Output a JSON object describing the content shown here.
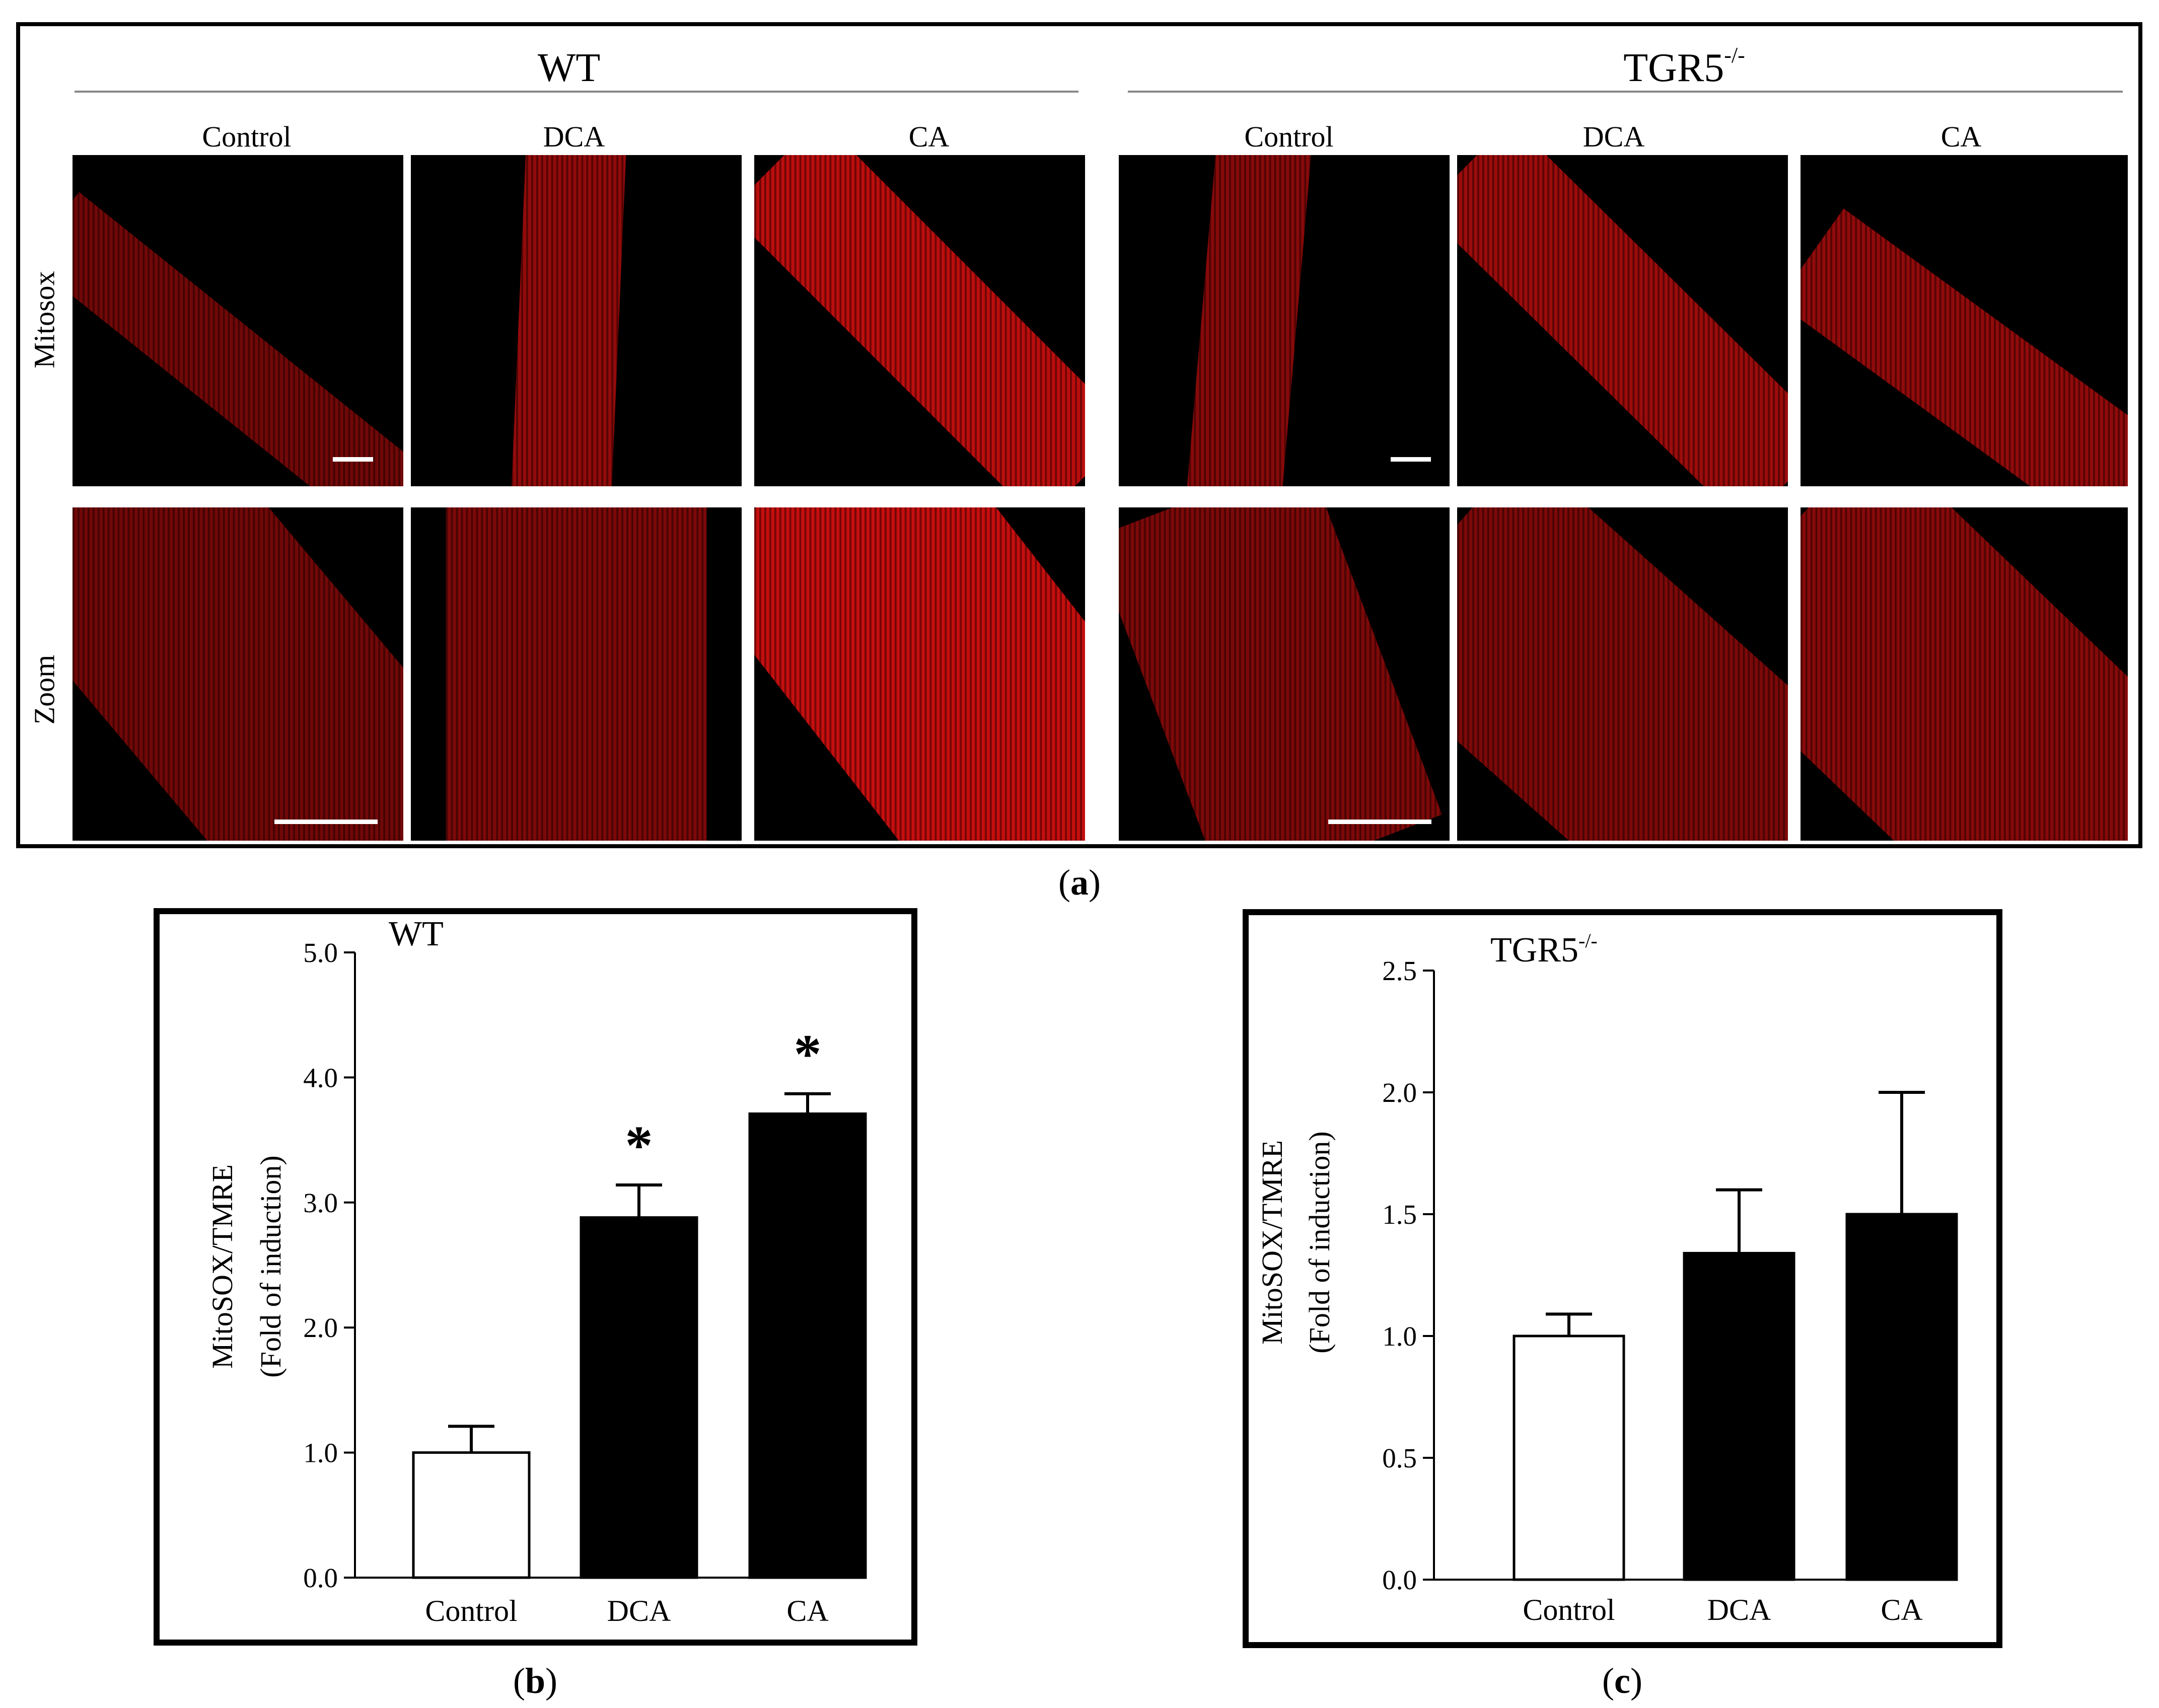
{
  "figure": {
    "panel_a": {
      "caption_letter": "a",
      "groups": [
        {
          "title": "WT",
          "superscript": ""
        },
        {
          "title": "TGR5",
          "superscript": "-/-"
        }
      ],
      "columns": [
        "Control",
        "DCA",
        "CA",
        "Control",
        "DCA",
        "CA"
      ],
      "rows": [
        "Mitosox",
        "Zoom"
      ],
      "fluorescence_color": "#d01010"
    },
    "panel_b": {
      "caption_letter": "b"
    },
    "panel_c": {
      "caption_letter": "c"
    }
  },
  "chart_data": [
    {
      "type": "bar",
      "title": "WT",
      "title_superscript": "",
      "categories": [
        "Control",
        "DCA",
        "CA"
      ],
      "values": [
        1.0,
        2.88,
        3.71
      ],
      "error_upper": [
        1.21,
        3.14,
        3.87
      ],
      "significance": [
        "",
        "*",
        "*"
      ],
      "bar_colors": [
        "#ffffff",
        "#000000",
        "#000000"
      ],
      "ylabel_line1": "MitoSOX/TMRE",
      "ylabel_line2": "(Fold of induction)",
      "ylim": [
        0,
        5
      ],
      "yticks": [
        "0.0",
        "1.0",
        "2.0",
        "3.0",
        "4.0",
        "5.0"
      ],
      "ytick_values": [
        0,
        1,
        2,
        3,
        4,
        5
      ]
    },
    {
      "type": "bar",
      "title": "TGR5",
      "title_superscript": "-/-",
      "categories": [
        "Control",
        "DCA",
        "CA"
      ],
      "values": [
        1.0,
        1.34,
        1.5
      ],
      "error_upper": [
        1.09,
        1.6,
        2.0
      ],
      "significance": [
        "",
        "",
        ""
      ],
      "bar_colors": [
        "#ffffff",
        "#000000",
        "#000000"
      ],
      "ylabel_line1": "MitoSOX/TMRE",
      "ylabel_line2": "(Fold of induction)",
      "ylim": [
        0,
        2.5
      ],
      "yticks": [
        "0.0",
        "0.5",
        "1.0",
        "1.5",
        "2.0",
        "2.5"
      ],
      "ytick_values": [
        0,
        0.5,
        1.0,
        1.5,
        2.0,
        2.5
      ]
    }
  ]
}
